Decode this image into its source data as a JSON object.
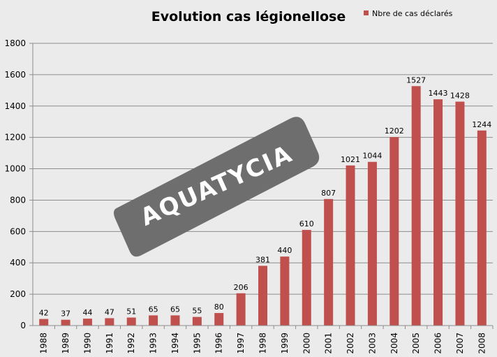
{
  "chart_data": {
    "type": "bar",
    "title": "Evolution cas légionellose",
    "xlabel": "",
    "ylabel": "",
    "ylim": [
      0,
      1800
    ],
    "yticks": [
      0,
      200,
      400,
      600,
      800,
      1000,
      1200,
      1400,
      1600,
      1800
    ],
    "grid": true,
    "legend_position": "top-right",
    "categories": [
      "1988",
      "1989",
      "1990",
      "1991",
      "1992",
      "1993",
      "1994",
      "1995",
      "1996",
      "1997",
      "1998",
      "1999",
      "2000",
      "2001",
      "2002",
      "2003",
      "2004",
      "2005",
      "2006",
      "2007",
      "2008"
    ],
    "series": [
      {
        "name": "Nbre de cas déclarés",
        "color": "#c0504d",
        "values": [
          42,
          37,
          44,
          47,
          51,
          65,
          65,
          55,
          80,
          206,
          381,
          440,
          610,
          807,
          1021,
          1044,
          1202,
          1527,
          1443,
          1428,
          1244
        ]
      }
    ]
  },
  "watermark": {
    "text": "AQUATYCIA",
    "color": "#6e6e6e"
  }
}
